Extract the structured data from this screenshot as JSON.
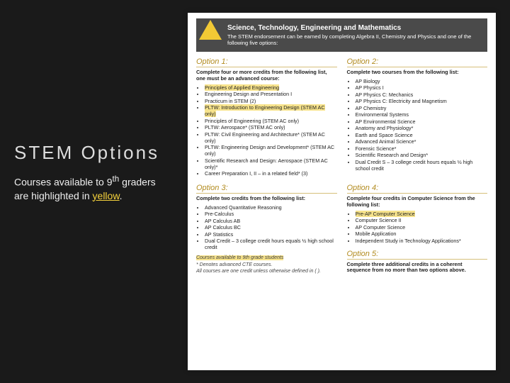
{
  "sidebar": {
    "title": "STEM Options",
    "sub_pre": "Courses available to 9",
    "sub_sup": "th",
    "sub_mid": " graders are highlighted in ",
    "sub_hl": "yellow",
    "sub_post": "."
  },
  "band": {
    "title": "Science, Technology, Engineering and Mathematics",
    "sub": "The STEM endorsement can be earned by completing Algebra II, Chemistry and Physics and one of the following five options:"
  },
  "opt1": {
    "title": "Option 1:",
    "sub": "Complete four or more credits from the following list, one must be an advanced course:",
    "items": [
      {
        "t": "Principles of Applied Engineering",
        "hl": true
      },
      {
        "t": "Engineering Design and Presentation I",
        "hl": false
      },
      {
        "t": "Practicum in STEM (2)",
        "hl": false
      },
      {
        "t": "PLTW: Introduction to Engineering Design (STEM AC only)",
        "hl": true
      },
      {
        "t": "Principles of Engineering (STEM AC only)",
        "hl": false
      },
      {
        "t": "PLTW: Aerospace* (STEM AC only)",
        "hl": false
      },
      {
        "t": "PLTW: Civil Engineering and Architecture* (STEM AC only)",
        "hl": false
      },
      {
        "t": "PLTW: Engineering Design and Development* (STEM AC only)",
        "hl": false
      },
      {
        "t": "Scientific Research and Design: Aerospace (STEM AC only)*",
        "hl": false
      },
      {
        "t": "Career Preparation I, II – in a related field* (3)",
        "hl": false
      }
    ]
  },
  "opt2": {
    "title": "Option 2:",
    "sub": "Complete two courses from the following list:",
    "items": [
      {
        "t": "AP Biology",
        "hl": false
      },
      {
        "t": "AP Physics I",
        "hl": false
      },
      {
        "t": "AP Physics C: Mechanics",
        "hl": false
      },
      {
        "t": "AP Physics C: Electricity and Magnetism",
        "hl": false
      },
      {
        "t": "AP Chemistry",
        "hl": false
      },
      {
        "t": "Environmental Systems",
        "hl": false
      },
      {
        "t": "AP Environmental Science",
        "hl": false
      },
      {
        "t": "Anatomy and Physiology*",
        "hl": false
      },
      {
        "t": "Earth and Space Science",
        "hl": false
      },
      {
        "t": "Advanced Animal Science*",
        "hl": false
      },
      {
        "t": "Forensic Science*",
        "hl": false
      },
      {
        "t": "Scientific Research and Design*",
        "hl": false
      },
      {
        "t": "Dual Credit S – 3 college credit hours equals ½ high school credit",
        "hl": false
      }
    ]
  },
  "opt3": {
    "title": "Option 3:",
    "sub": "Complete two credits from the following list:",
    "items": [
      {
        "t": "Advanced Quantitative Reasoning",
        "hl": false
      },
      {
        "t": "Pre-Calculus",
        "hl": false
      },
      {
        "t": "AP Calculus AB",
        "hl": false
      },
      {
        "t": "AP Calculus BC",
        "hl": false
      },
      {
        "t": "AP Statistics",
        "hl": false
      },
      {
        "t": "Dual Credit – 3 college credit hours equals ½ high school credit",
        "hl": false
      }
    ]
  },
  "opt4": {
    "title": "Option 4:",
    "sub": "Complete four credits in Computer Science from the following list:",
    "items": [
      {
        "t": "Pre-AP Computer Science",
        "hl": true
      },
      {
        "t": "Computer Science II",
        "hl": false
      },
      {
        "t": "AP Computer Science",
        "hl": false
      },
      {
        "t": "Mobile Application",
        "hl": false
      },
      {
        "t": "Independent Study in Technology Applications*",
        "hl": false
      }
    ]
  },
  "opt5": {
    "title": "Option 5:",
    "sub": "Complete three additional credits in a coherent sequence from no more than two options above."
  },
  "foot": {
    "l1": "Courses available to 9th grade students",
    "l2": "* Denotes advanced CTE courses.",
    "l3": "All courses are one credit unless otherwise defined in ( )."
  },
  "colors": {
    "highlight": "#f7e38c",
    "gold": "#b28b1f",
    "band": "#4a4a4a",
    "triangle": "#f2c935",
    "bg": "#1a1a1a"
  }
}
